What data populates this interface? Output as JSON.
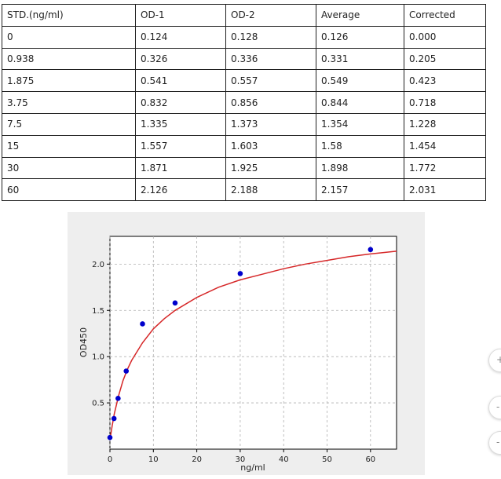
{
  "table": {
    "headers": [
      "STD.(ng/ml)",
      "OD-1",
      "OD-2",
      "Average",
      "Corrected"
    ],
    "rows": [
      [
        "0",
        "0.124",
        "0.128",
        "0.126",
        "0.000"
      ],
      [
        "0.938",
        "0.326",
        "0.336",
        "0.331",
        "0.205"
      ],
      [
        "1.875",
        "0.541",
        "0.557",
        "0.549",
        "0.423"
      ],
      [
        "3.75",
        "0.832",
        "0.856",
        "0.844",
        "0.718"
      ],
      [
        "7.5",
        "1.335",
        "1.373",
        "1.354",
        "1.228"
      ],
      [
        "15",
        "1.557",
        "1.603",
        "1.58",
        "1.454"
      ],
      [
        "30",
        "1.871",
        "1.925",
        "1.898",
        "1.772"
      ],
      [
        "60",
        "2.126",
        "2.188",
        "2.157",
        "2.031"
      ]
    ]
  },
  "chart_data": {
    "type": "scatter",
    "title": "",
    "xlabel": "ng/ml",
    "ylabel": "OD450",
    "xlim": [
      0,
      66
    ],
    "ylim": [
      0,
      2.3
    ],
    "xticks": [
      0,
      10,
      20,
      30,
      40,
      50,
      60
    ],
    "yticks": [
      0.5,
      1.0,
      1.5,
      2.0
    ],
    "xtick_labels": [
      "0",
      "10",
      "20",
      "30",
      "40",
      "50",
      "60"
    ],
    "ytick_labels": [
      "0.5",
      "1.0",
      "1.5",
      "2.0"
    ],
    "grid": true,
    "series": [
      {
        "type": "scatter",
        "color": "#0000cc",
        "x": [
          0,
          0.938,
          1.875,
          3.75,
          7.5,
          15,
          30,
          60
        ],
        "y": [
          0.126,
          0.331,
          0.549,
          0.844,
          1.354,
          1.58,
          1.898,
          2.157
        ]
      },
      {
        "type": "fit-curve",
        "color": "#d62728",
        "x": [
          0,
          0.5,
          1,
          2,
          3,
          4,
          5,
          7.5,
          10,
          12.5,
          15,
          20,
          25,
          30,
          35,
          40,
          45,
          50,
          55,
          60,
          66
        ],
        "y": [
          0.1,
          0.25,
          0.38,
          0.58,
          0.74,
          0.86,
          0.96,
          1.15,
          1.3,
          1.41,
          1.5,
          1.64,
          1.75,
          1.83,
          1.89,
          1.95,
          2.0,
          2.04,
          2.08,
          2.11,
          2.14
        ]
      }
    ]
  },
  "side_buttons": [
    "+",
    "-",
    "-"
  ]
}
